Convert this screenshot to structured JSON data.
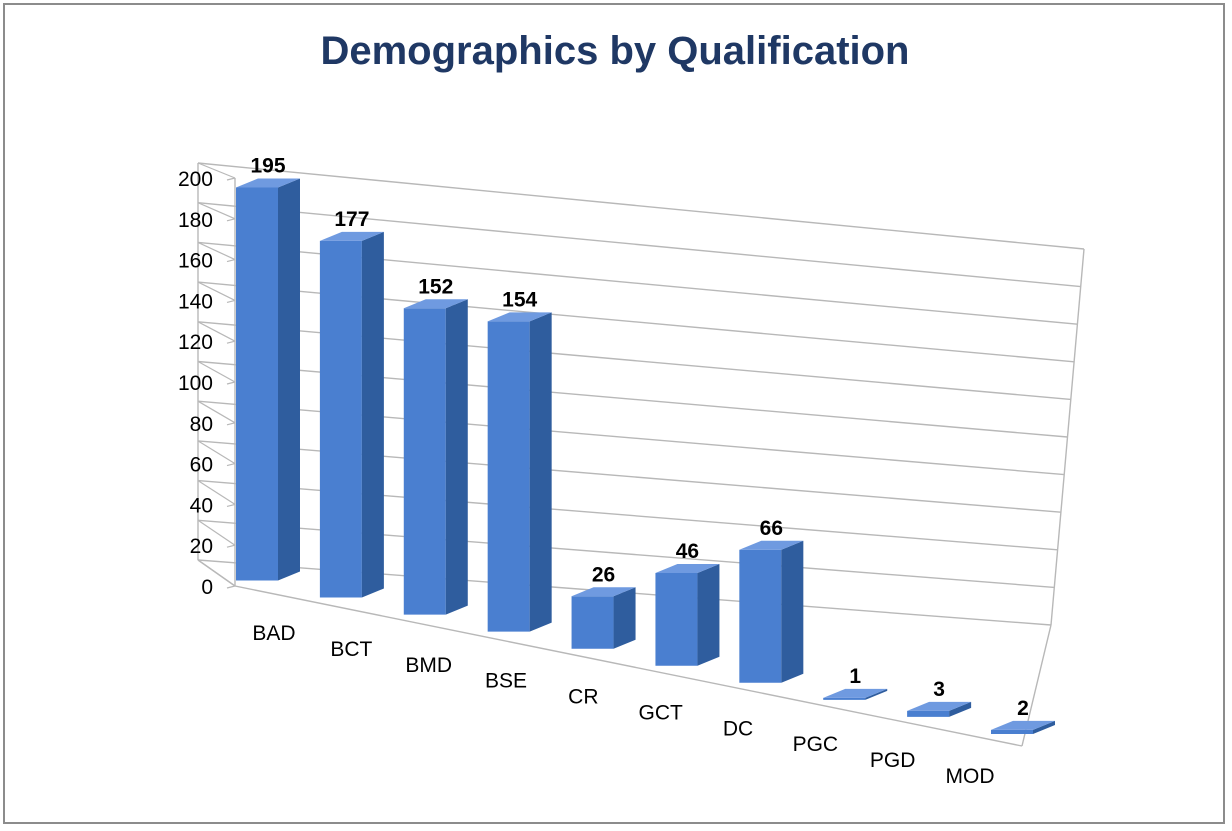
{
  "chart_data": {
    "type": "bar",
    "style": "3d-column",
    "title": "Demographics by Qualification",
    "categories": [
      "BAD",
      "BCT",
      "BMD",
      "BSE",
      "CR",
      "GCT",
      "DC",
      "PGC",
      "PGD",
      "MOD"
    ],
    "values": [
      195,
      177,
      152,
      154,
      26,
      46,
      66,
      1,
      3,
      2
    ],
    "data_labels": [
      "195",
      "177",
      "152",
      "154",
      "26",
      "46",
      "66",
      "1",
      "3",
      "2"
    ],
    "ylim": [
      0,
      200
    ],
    "yticks": [
      0,
      20,
      40,
      60,
      80,
      100,
      120,
      140,
      160,
      180,
      200
    ],
    "grid": true,
    "legend": "none",
    "colors": {
      "bar_front": "#4a7fd0",
      "bar_side": "#2f5d9e",
      "bar_top": "#6f9ae0",
      "grid": "#b8b8b8",
      "title": "#1f3864"
    }
  }
}
